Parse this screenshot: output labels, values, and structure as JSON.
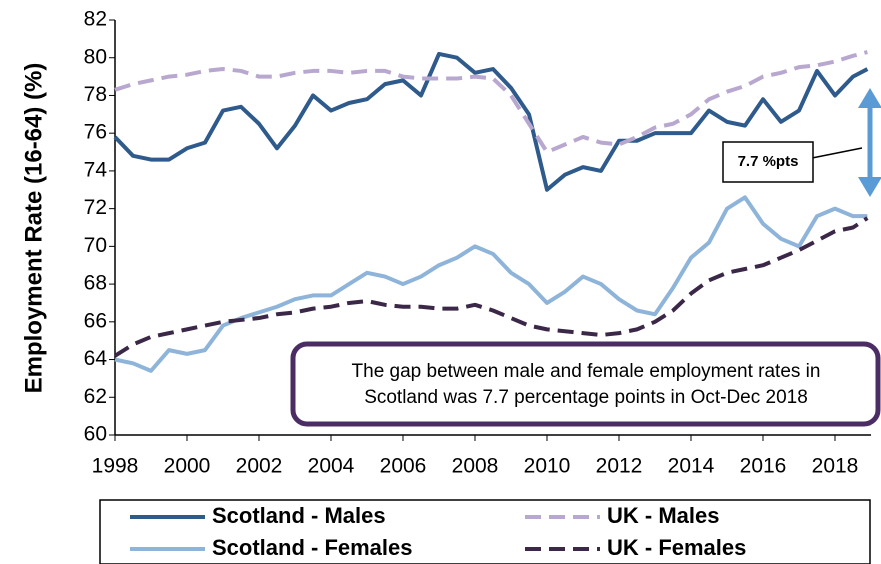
{
  "chart_data": {
    "type": "line",
    "y_label": "Employment Rate (16-64) (%)",
    "annotations": [
      "7.7 %pts",
      "The gap between male and female employment rates in Scotland was 7.7 percentage points in Oct-Dec 2018"
    ],
    "x": [
      1998,
      1998.5,
      1999,
      1999.5,
      2000,
      2000.5,
      2001,
      2001.5,
      2002,
      2002.5,
      2003,
      2003.5,
      2004,
      2004.5,
      2005,
      2005.5,
      2006,
      2006.5,
      2007,
      2007.5,
      2008,
      2008.5,
      2009,
      2009.5,
      2010,
      2010.5,
      2011,
      2011.5,
      2012,
      2012.5,
      2013,
      2013.5,
      2014,
      2014.5,
      2015,
      2015.5,
      2016,
      2016.5,
      2017,
      2017.5,
      2018,
      2018.5,
      2018.9
    ],
    "series": [
      {
        "name": "Scotland - Males",
        "color": "#2e5a8c",
        "dashed": false,
        "values": [
          75.8,
          74.8,
          74.6,
          74.6,
          75.2,
          75.5,
          77.2,
          77.4,
          76.5,
          75.2,
          76.4,
          78.0,
          77.2,
          77.6,
          77.8,
          78.6,
          78.8,
          78.0,
          80.2,
          80.0,
          79.2,
          79.4,
          78.4,
          77.0,
          73.0,
          73.8,
          74.2,
          74.0,
          75.6,
          75.6,
          76.0,
          76.0,
          76.0,
          77.2,
          76.6,
          76.4,
          77.8,
          76.6,
          77.2,
          79.3,
          78.0,
          79.0,
          79.4
        ]
      },
      {
        "name": "UK - Males",
        "color": "#b8a8cf",
        "dashed": true,
        "values": [
          78.3,
          78.6,
          78.8,
          79.0,
          79.1,
          79.3,
          79.4,
          79.3,
          79.0,
          79.0,
          79.2,
          79.3,
          79.3,
          79.2,
          79.3,
          79.3,
          79.0,
          78.9,
          78.9,
          78.9,
          79.0,
          78.9,
          78.0,
          76.5,
          75.0,
          75.4,
          75.8,
          75.5,
          75.4,
          75.8,
          76.3,
          76.5,
          77.0,
          77.8,
          78.2,
          78.5,
          79.0,
          79.2,
          79.5,
          79.6,
          79.8,
          80.1,
          80.3
        ]
      },
      {
        "name": "Scotland - Females",
        "color": "#8fb4da",
        "dashed": false,
        "values": [
          64.0,
          63.8,
          63.4,
          64.5,
          64.3,
          64.5,
          65.8,
          66.2,
          66.5,
          66.8,
          67.2,
          67.4,
          67.4,
          68.0,
          68.6,
          68.4,
          68.0,
          68.4,
          69.0,
          69.4,
          70.0,
          69.6,
          68.6,
          68.0,
          67.0,
          67.6,
          68.4,
          68.0,
          67.2,
          66.6,
          66.4,
          67.8,
          69.4,
          70.2,
          72.0,
          72.6,
          71.2,
          70.4,
          70.0,
          71.6,
          72.0,
          71.6,
          71.6
        ]
      },
      {
        "name": "UK - Females",
        "color": "#3b2849",
        "dashed": true,
        "values": [
          64.2,
          64.8,
          65.2,
          65.4,
          65.6,
          65.8,
          66.0,
          66.1,
          66.2,
          66.4,
          66.5,
          66.7,
          66.8,
          67.0,
          67.1,
          66.9,
          66.8,
          66.8,
          66.7,
          66.7,
          66.9,
          66.6,
          66.2,
          65.8,
          65.6,
          65.5,
          65.4,
          65.3,
          65.4,
          65.6,
          66.0,
          66.6,
          67.5,
          68.2,
          68.6,
          68.8,
          69.0,
          69.4,
          69.8,
          70.3,
          70.8,
          71.0,
          71.5
        ]
      }
    ],
    "xlim": [
      1998,
      2019
    ],
    "xticks": [
      1998,
      2000,
      2002,
      2004,
      2006,
      2008,
      2010,
      2012,
      2014,
      2016,
      2018
    ],
    "ylim": [
      60,
      82
    ],
    "yticks": [
      60,
      62,
      64,
      66,
      68,
      70,
      72,
      74,
      76,
      78,
      80,
      82
    ],
    "grid": false
  }
}
